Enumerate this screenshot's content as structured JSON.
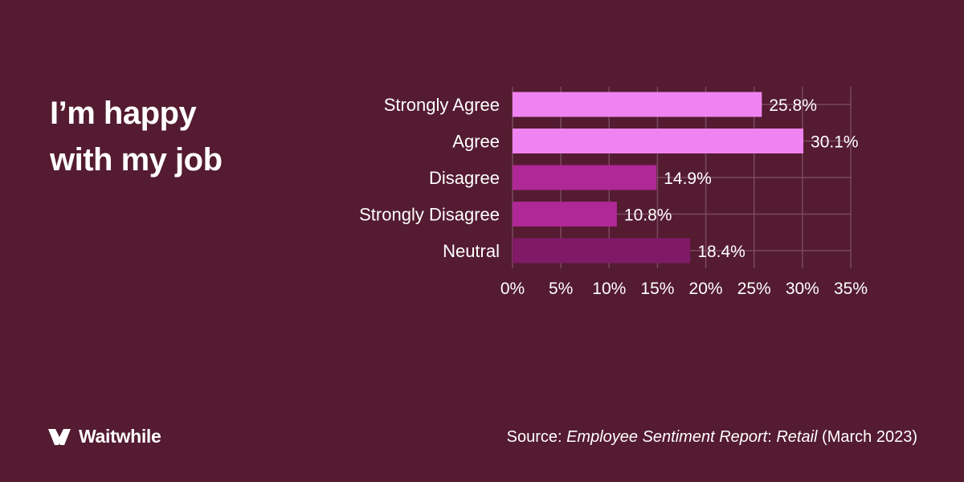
{
  "headline": {
    "line1": "I’m happy",
    "line2": "with my job"
  },
  "brand": {
    "name": "Waitwhile",
    "logo_icon": "waitwhile-logo-icon"
  },
  "source": {
    "prefix": "Source: ",
    "title": "Employee Sentiment Report",
    "colon": ": ",
    "subtitle": "Retail",
    "date": " (March 2023)"
  },
  "colors": {
    "background": "#541b31",
    "grid": "#7a4a5e",
    "bar_light": "#f083f2",
    "bar_mid": "#b02796",
    "bar_dark": "#801a66",
    "text": "#ffffff"
  },
  "chart_data": {
    "type": "bar",
    "orientation": "horizontal",
    "categories": [
      "Strongly Agree",
      "Agree",
      "Disagree",
      "Strongly Disagree",
      "Neutral"
    ],
    "values": [
      25.8,
      30.1,
      14.9,
      10.8,
      18.4
    ],
    "value_labels": [
      "25.8%",
      "30.1%",
      "14.9%",
      "10.8%",
      "18.4%"
    ],
    "bar_colors": [
      "#f083f2",
      "#f083f2",
      "#b02796",
      "#b02796",
      "#801a66"
    ],
    "xlim": [
      0,
      35
    ],
    "xticks": [
      0,
      5,
      10,
      15,
      20,
      25,
      30,
      35
    ],
    "xtick_labels": [
      "0%",
      "5%",
      "10%",
      "15%",
      "20%",
      "25%",
      "30%",
      "35%"
    ],
    "grid": true
  }
}
